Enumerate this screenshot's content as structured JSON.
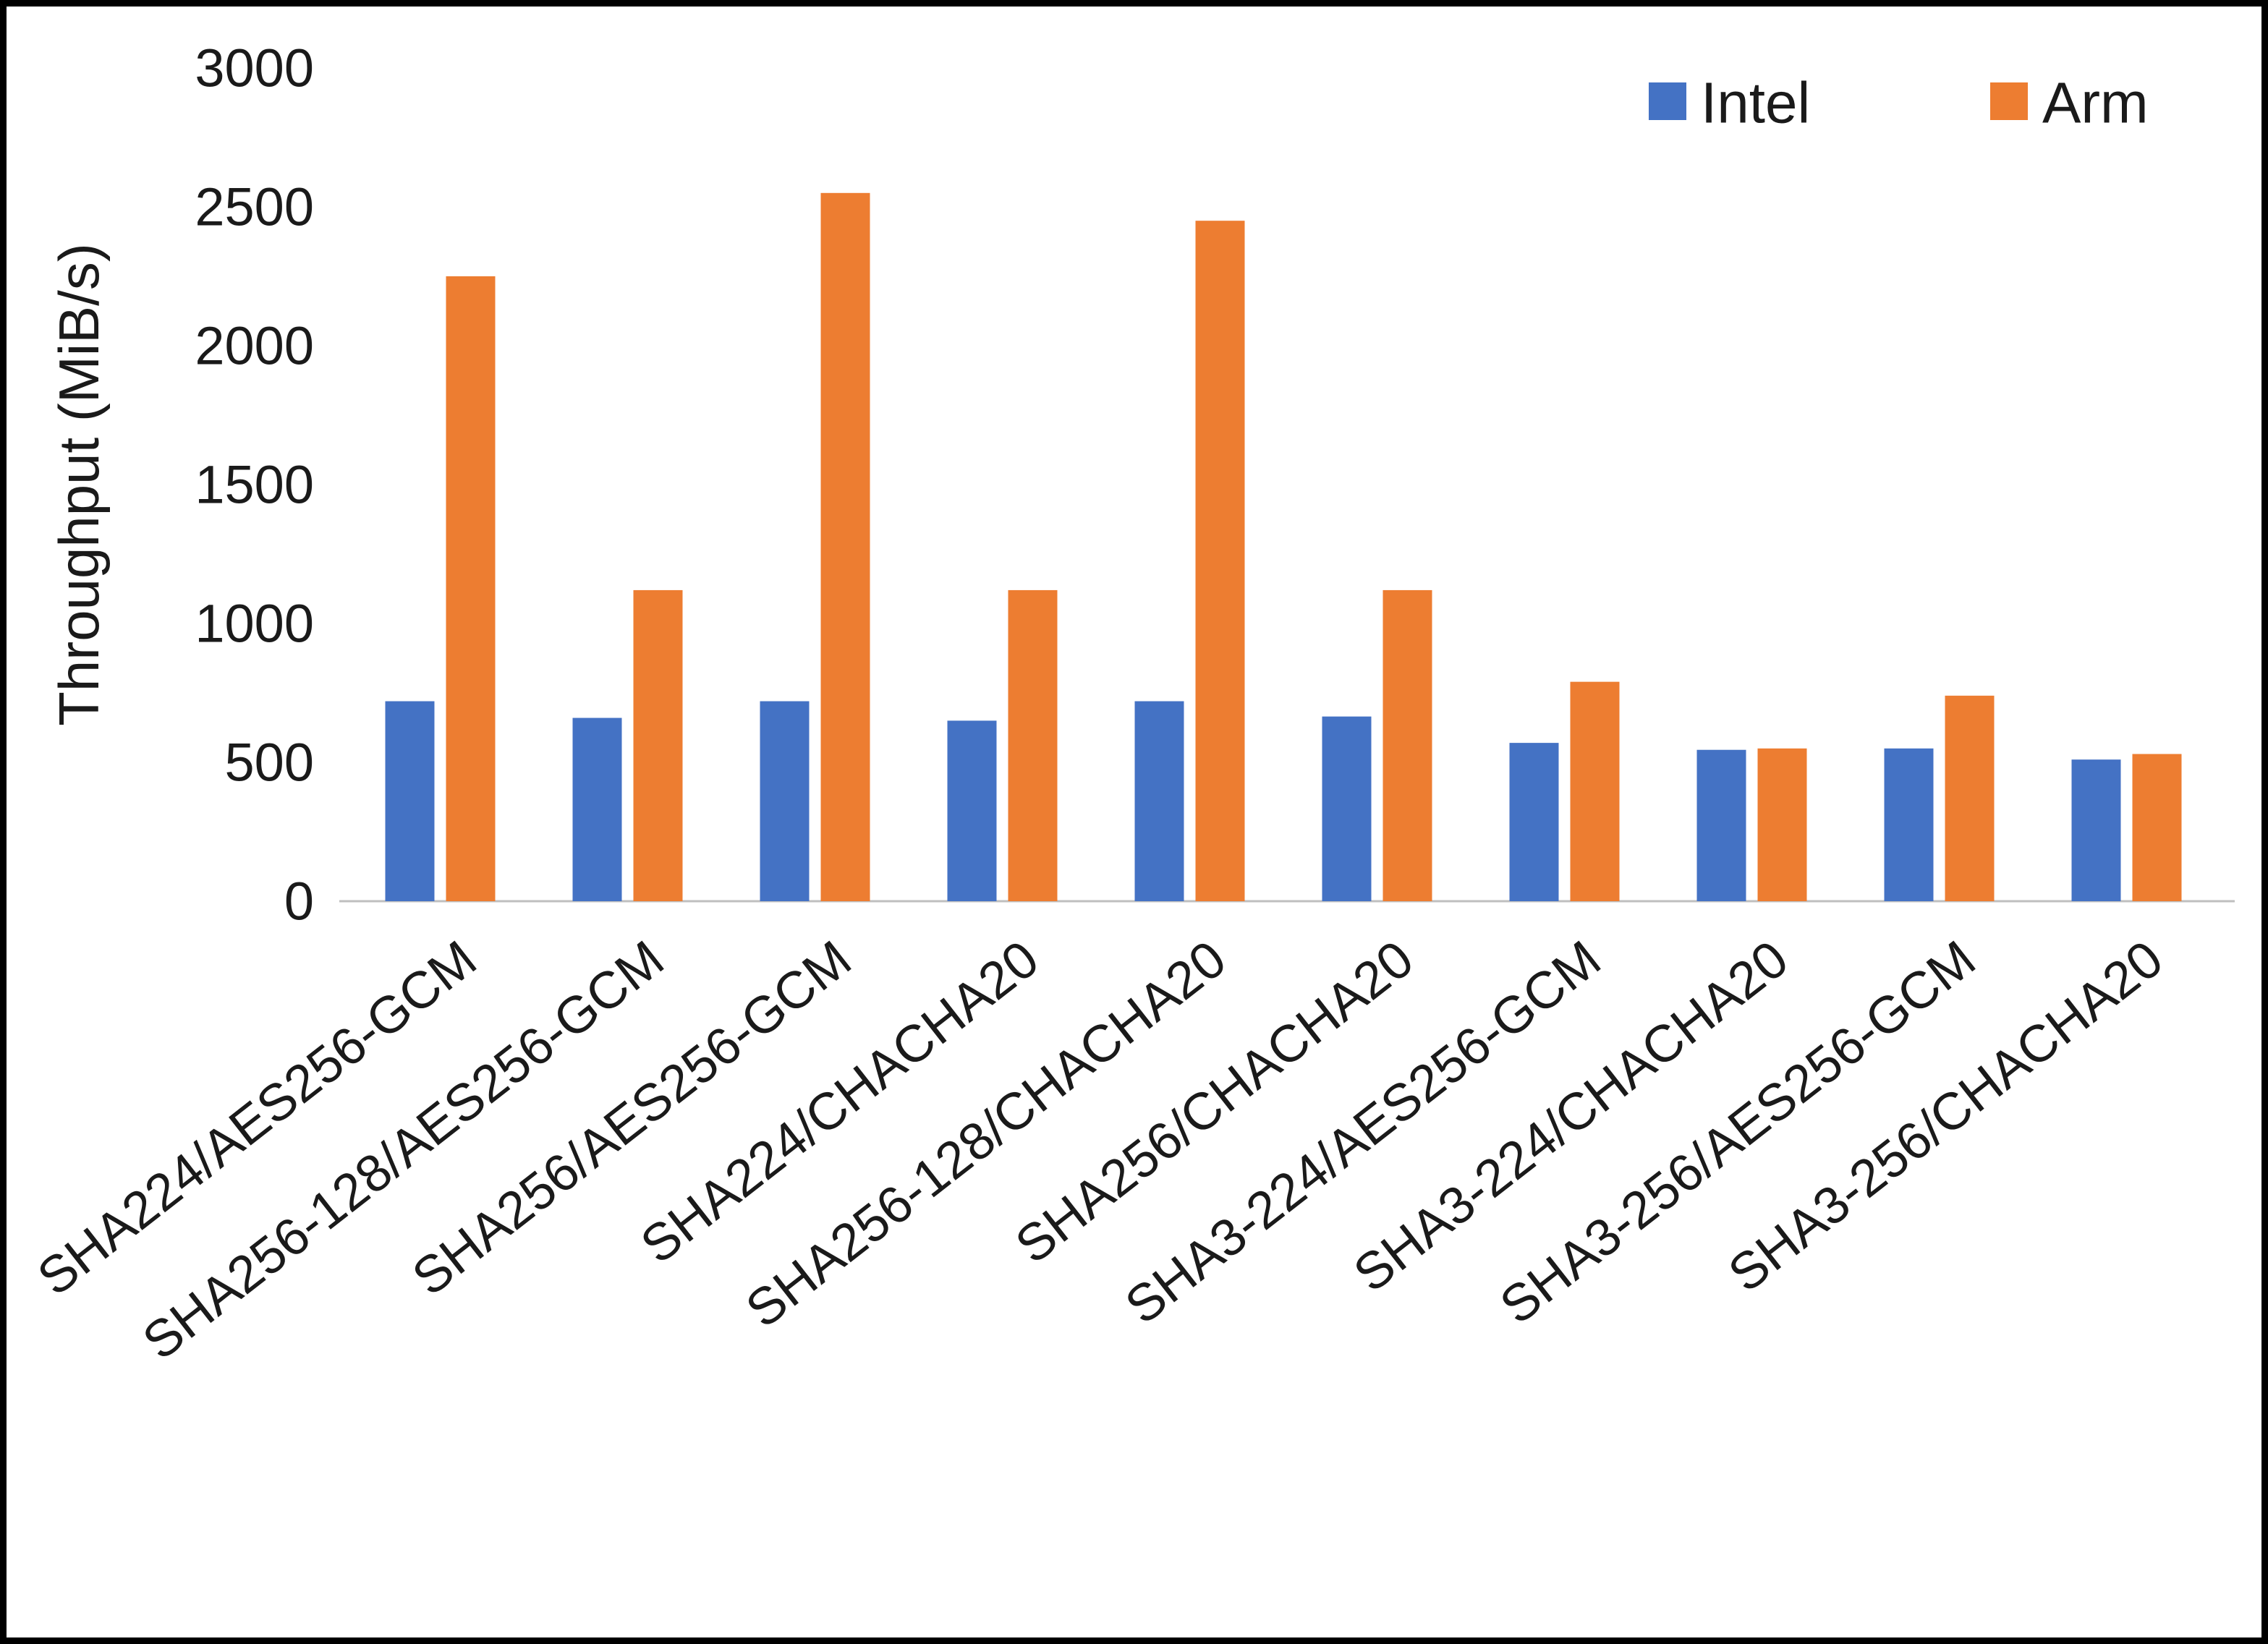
{
  "chart_data": {
    "type": "bar",
    "title": "",
    "ylabel": "Throughput (MiB/s)",
    "xlabel": "",
    "ylim": [
      0,
      3000
    ],
    "ytick_interval": 500,
    "ytick_labels": [
      "0",
      "500",
      "1000",
      "1500",
      "2000",
      "2500",
      "3000"
    ],
    "grid": false,
    "legend_position": "top-right",
    "categories": [
      "SHA224/AES256-GCM",
      "SHA256-128/AES256-GCM",
      "SHA256/AES256-GCM",
      "SHA224/CHACHA20",
      "SHA256-128/CHACHA20",
      "SHA256/CHACHA20",
      "SHA3-224/AES256-GCM",
      "SHA3-224/CHACHA20",
      "SHA3-256/AES256-GCM",
      "SHA3-256/CHACHA20"
    ],
    "series": [
      {
        "name": "Intel",
        "color": "#4472C4",
        "values": [
          720,
          660,
          720,
          650,
          720,
          665,
          570,
          545,
          550,
          510
        ]
      },
      {
        "name": "Arm",
        "color": "#ED7D31",
        "values": [
          2250,
          1120,
          2550,
          1120,
          2450,
          1120,
          790,
          550,
          740,
          530
        ]
      }
    ],
    "axis_line_color": "#bfbfbf",
    "x_label_rotation_deg": -38
  }
}
